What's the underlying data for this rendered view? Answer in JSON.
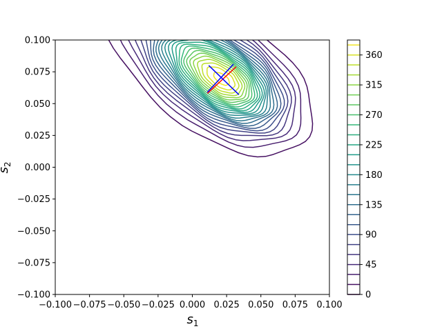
{
  "chart_data": {
    "type": "contour",
    "title": "",
    "xlabel": "s",
    "xlabel_sub": "1",
    "ylabel": "s",
    "ylabel_sub": "2",
    "xlim": [
      -0.1,
      0.1
    ],
    "ylim": [
      -0.1,
      0.1
    ],
    "x_ticks": [
      "−0.100",
      "−0.075",
      "−0.050",
      "−0.025",
      "0.000",
      "0.025",
      "0.050",
      "0.075",
      "0.100"
    ],
    "y_ticks": [
      "−0.100",
      "−0.075",
      "−0.050",
      "−0.025",
      "0.000",
      "0.025",
      "0.050",
      "0.075",
      "0.100"
    ],
    "x_tick_values": [
      -0.1,
      -0.075,
      -0.05,
      -0.025,
      0.0,
      0.025,
      0.05,
      0.075,
      0.1
    ],
    "y_tick_values": [
      -0.1,
      -0.075,
      -0.05,
      -0.025,
      0.0,
      0.025,
      0.05,
      0.075,
      0.1
    ],
    "grid": false,
    "colormap": "viridis",
    "colorbar": {
      "ticks": [
        "0",
        "45",
        "90",
        "135",
        "180",
        "225",
        "270",
        "315",
        "360"
      ],
      "tick_values": [
        0,
        45,
        90,
        135,
        180,
        225,
        270,
        315,
        360
      ],
      "min": 0,
      "max": 382.5,
      "level_step": 15
    },
    "peak": {
      "x": 0.022,
      "y": 0.069,
      "value": 382
    },
    "distribution": {
      "center": [
        0.022,
        0.069
      ],
      "sigma_major": 0.03,
      "sigma_minor": 0.018,
      "major_axis_direction": [
        0.78,
        -0.63
      ]
    },
    "cross_markers": [
      {
        "color": "#ff0000",
        "from": [
          0.011,
          0.058
        ],
        "to": [
          0.032,
          0.079
        ]
      },
      {
        "color": "#0000ff",
        "from": [
          0.012,
          0.08
        ],
        "to": [
          0.034,
          0.057
        ]
      },
      {
        "color": "#0000ff",
        "from": [
          0.011,
          0.059
        ],
        "to": [
          0.03,
          0.081
        ]
      }
    ]
  }
}
